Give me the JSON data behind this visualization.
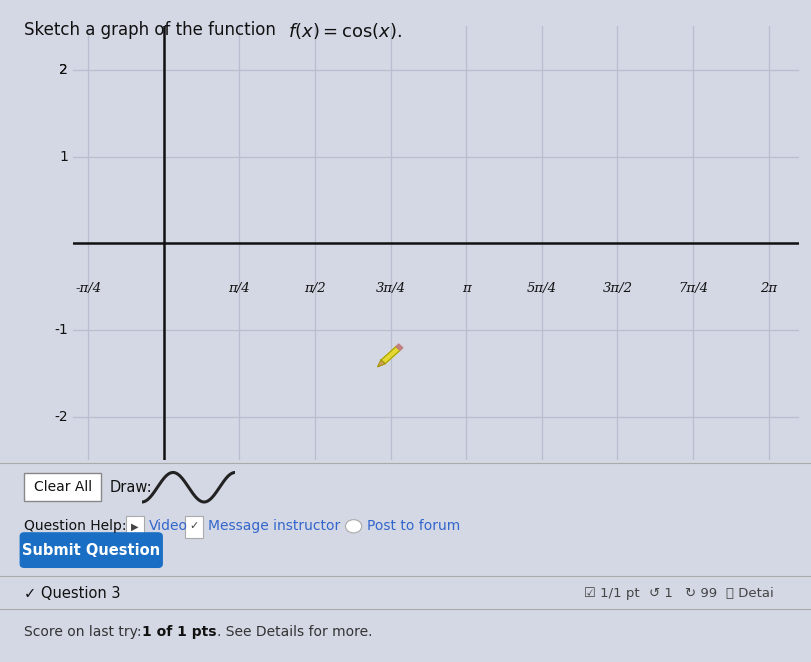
{
  "title_plain": "Sketch a graph of the function ",
  "title_math": "f(x) = cos(x).",
  "title_fontsize": 12,
  "bg_color": "#d4d8e4",
  "plot_bg_color": "#d4d8e4",
  "grid_color": "#b8bdd0",
  "axis_color": "#111111",
  "xlim_pi": [
    -0.3,
    2.1
  ],
  "ylim": [
    -2.5,
    2.5
  ],
  "yticks": [
    -2,
    -1,
    1,
    2
  ],
  "xtick_labels": [
    "-π/4",
    "π/4",
    "π/2",
    "3π/4",
    "π",
    "5π/4",
    "3π/2",
    "7π/4",
    "2π"
  ],
  "xtick_values_pi": [
    -0.25,
    0.25,
    0.5,
    0.75,
    1.0,
    1.25,
    1.5,
    1.75,
    2.0
  ],
  "pencil_x_pi": 0.75,
  "pencil_y": -1.4,
  "wave_color": "#cc0000",
  "wave_linewidth": 2.0,
  "ui_bg": "#d4d8e4"
}
